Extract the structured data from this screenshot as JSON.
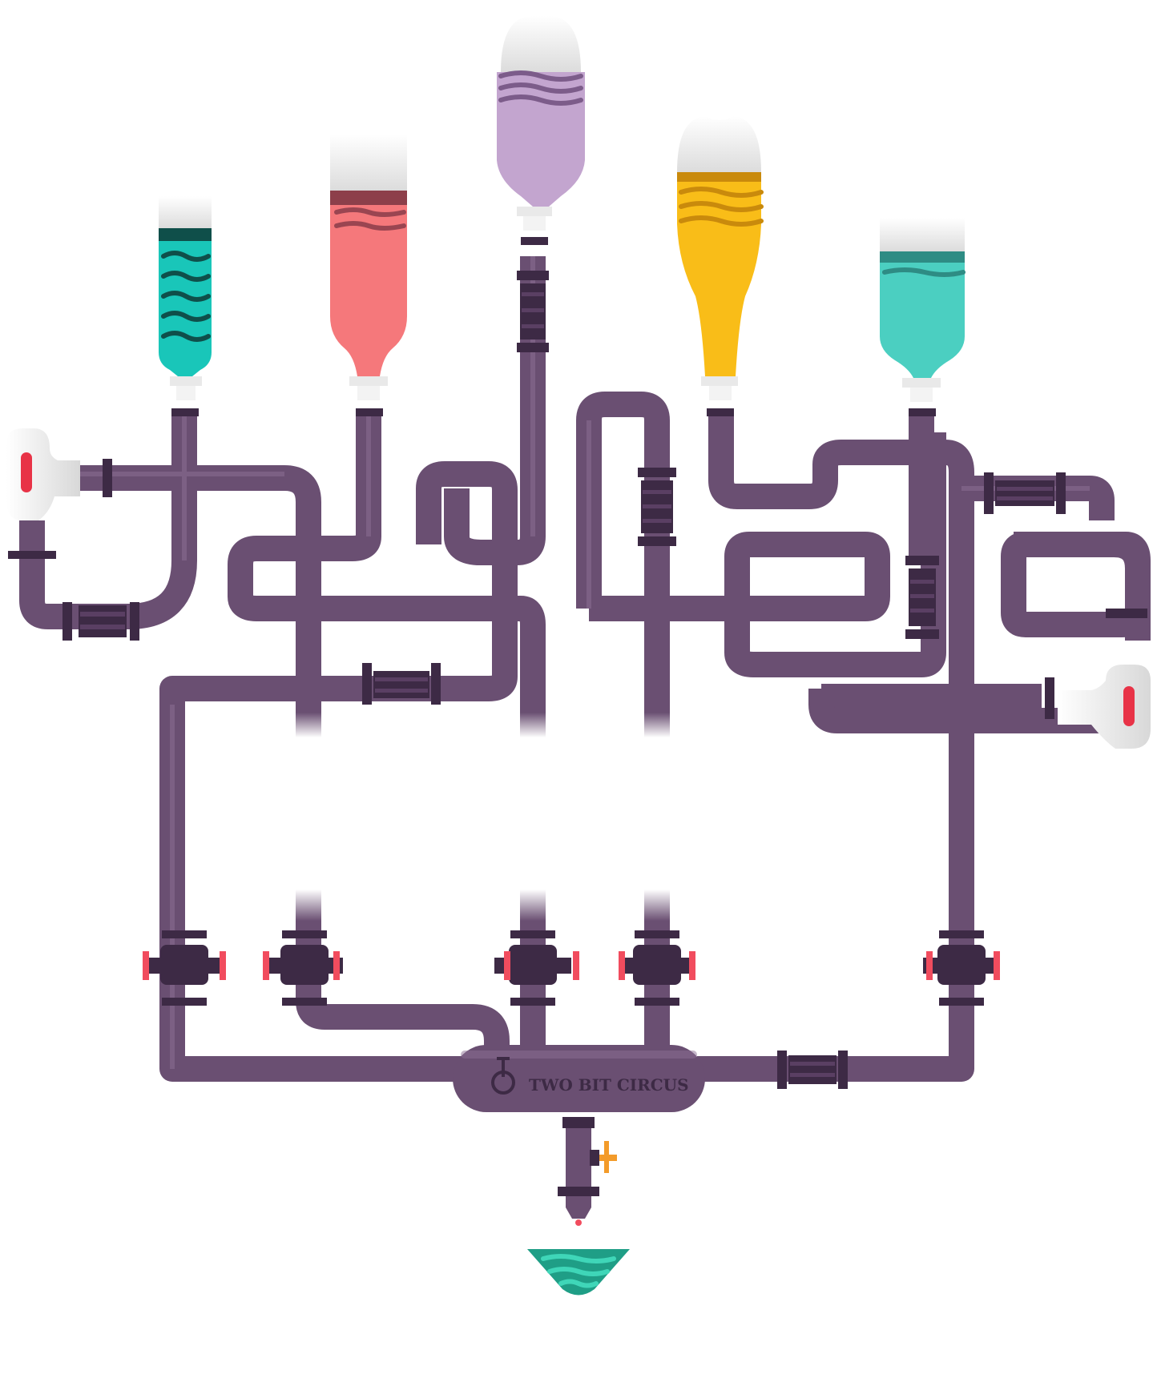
{
  "hub": {
    "brand_label": "TWO BIT CIRCUS"
  },
  "bottles": [
    {
      "name": "teal-striped-bottle",
      "liquid": "#19c6b9",
      "dark": "#0f6f68"
    },
    {
      "name": "coral-bottle",
      "liquid": "#f5787b",
      "dark": "#a44b54"
    },
    {
      "name": "lavender-bottle",
      "liquid": "#c3a5cf",
      "dark": "#7c5c8a"
    },
    {
      "name": "yellow-bottle",
      "liquid": "#f9bd18",
      "dark": "#c98a0c"
    },
    {
      "name": "aqua-bottle",
      "liquid": "#4bcfc1",
      "dark": "#2e8c84"
    }
  ],
  "colors": {
    "pipe": "#6a4f72",
    "pipe_dark": "#3d2a45",
    "valve_handle": "#f14c5e",
    "glass_liquid": "#1f9e86",
    "spigot_handle": "#f39b2a"
  },
  "valves": [
    "valve-1",
    "valve-2",
    "valve-3",
    "valve-4",
    "valve-5"
  ],
  "pressure_gauges": [
    "left-pressure-gauge",
    "right-pressure-gauge"
  ]
}
